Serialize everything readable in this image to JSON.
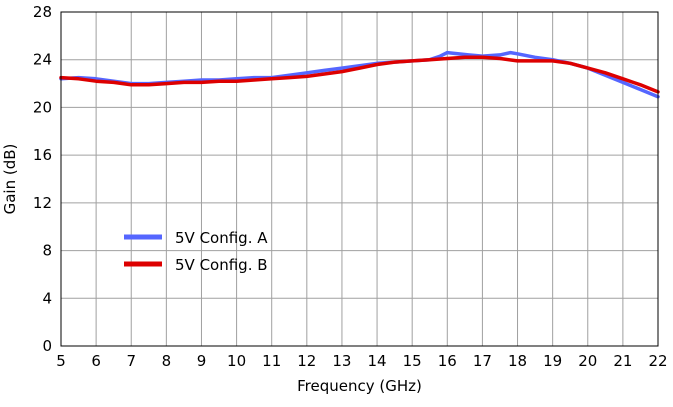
{
  "chart_data": {
    "type": "line",
    "title": "",
    "xlabel": "Frequency (GHz)",
    "ylabel": "Gain (dB)",
    "xlim": [
      5,
      22
    ],
    "ylim": [
      0,
      28
    ],
    "xticks": [
      "5",
      "6",
      "7",
      "8",
      "9",
      "10",
      "11",
      "12",
      "13",
      "14",
      "15",
      "16",
      "17",
      "18",
      "19",
      "20",
      "21",
      "22"
    ],
    "yticks": [
      "0",
      "4",
      "8",
      "12",
      "16",
      "20",
      "24",
      "28"
    ],
    "grid": true,
    "legend_position": "lower-left",
    "series": [
      {
        "name": "5V Config. A",
        "color": "#5566ff",
        "x": [
          5,
          5.5,
          6,
          6.5,
          7,
          7.5,
          8,
          8.5,
          9,
          9.5,
          10,
          10.5,
          11,
          11.5,
          12,
          12.5,
          13,
          13.5,
          14,
          14.5,
          15,
          15.5,
          15.8,
          16,
          16.3,
          16.6,
          17,
          17.5,
          17.8,
          18,
          18.5,
          19,
          19.5,
          20,
          20.5,
          21,
          21.5,
          22
        ],
        "y": [
          22.4,
          22.5,
          22.4,
          22.2,
          22.0,
          22.0,
          22.1,
          22.2,
          22.3,
          22.3,
          22.4,
          22.5,
          22.5,
          22.7,
          22.9,
          23.1,
          23.3,
          23.5,
          23.7,
          23.8,
          23.9,
          24.0,
          24.3,
          24.6,
          24.5,
          24.4,
          24.3,
          24.4,
          24.6,
          24.5,
          24.2,
          24.0,
          23.7,
          23.3,
          22.7,
          22.1,
          21.5,
          20.9
        ]
      },
      {
        "name": "5V Config. B",
        "color": "#dd0000",
        "x": [
          5,
          5.5,
          6,
          6.5,
          7,
          7.5,
          8,
          8.5,
          9,
          9.5,
          10,
          10.5,
          11,
          11.5,
          12,
          12.5,
          13,
          13.5,
          14,
          14.5,
          15,
          15.5,
          16,
          16.5,
          17,
          17.5,
          18,
          18.5,
          19,
          19.5,
          20,
          20.5,
          21,
          21.5,
          22
        ],
        "y": [
          22.5,
          22.4,
          22.2,
          22.1,
          21.9,
          21.9,
          22.0,
          22.1,
          22.1,
          22.2,
          22.2,
          22.3,
          22.4,
          22.5,
          22.6,
          22.8,
          23.0,
          23.3,
          23.6,
          23.8,
          23.9,
          24.0,
          24.1,
          24.2,
          24.2,
          24.1,
          23.9,
          23.9,
          23.9,
          23.7,
          23.3,
          22.9,
          22.4,
          21.9,
          21.3
        ]
      }
    ]
  }
}
